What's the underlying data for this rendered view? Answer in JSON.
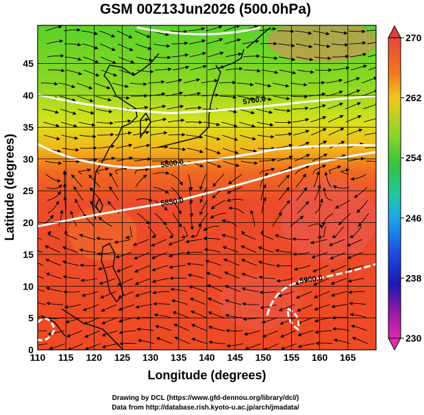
{
  "title": "GSM 00Z13Jun2026 (500.0hPa)",
  "x_axis": {
    "label": "Longitude (degrees)",
    "ticks": [
      110,
      115,
      120,
      125,
      130,
      135,
      140,
      145,
      150,
      155,
      160,
      165
    ],
    "range": [
      110,
      170
    ]
  },
  "y_axis": {
    "label": "Latitude  (degrees)",
    "ticks": [
      0,
      5,
      10,
      15,
      20,
      25,
      30,
      35,
      40,
      45
    ],
    "range": [
      0,
      51
    ]
  },
  "colorbar": {
    "ticks": [
      270,
      262,
      254,
      246,
      238,
      230
    ],
    "range": [
      230,
      270
    ]
  },
  "contour_labels": [
    "5700.0",
    "5800.0",
    "5850.0",
    "5900.0"
  ],
  "credits": [
    "Drawing by DCL (https://www.gfd-dennou.org/library/dcl/)",
    "Data from http://database.rish.kyoto-u.ac.jp/arch/jmadata/"
  ]
}
